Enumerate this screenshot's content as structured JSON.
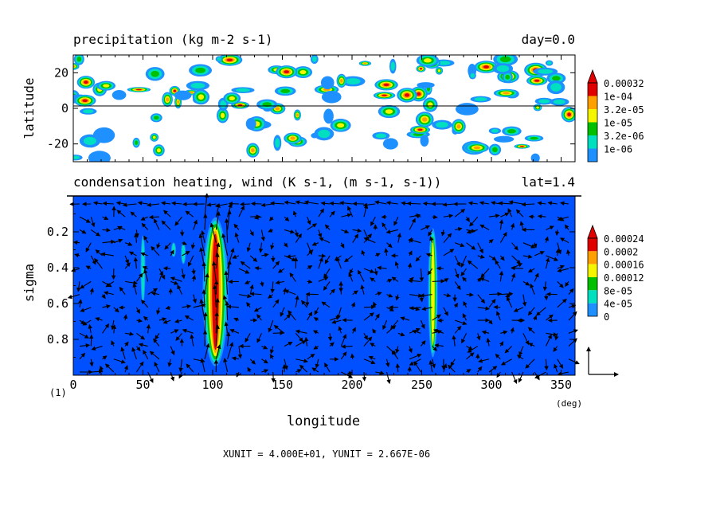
{
  "chart_data": [
    {
      "type": "heatmap",
      "title": "precipitation (kg m-2 s-1)",
      "title_right": "day=0.0",
      "ylabel": "latitude",
      "xlim": [
        0,
        360
      ],
      "ylim": [
        -30,
        30
      ],
      "yticks": [
        "20",
        "0",
        "-20"
      ],
      "ytick_values": [
        20,
        0,
        -20
      ],
      "colorbar": {
        "labels": [
          "0.00032",
          "1e-04",
          "3.2e-05",
          "1e-05",
          "3.2e-06",
          "1e-06"
        ],
        "colors": [
          "#ffffff",
          "#1e90ff",
          "#00e0c0",
          "#00c000",
          "#f5f500",
          "#ffa000",
          "#e00000"
        ]
      },
      "features": [
        {
          "name": "equator-line",
          "y": 0
        }
      ]
    },
    {
      "type": "heatmap",
      "title": "condensation heating, wind (K s-1, (m s-1, s-1))",
      "title_right": "lat=1.4",
      "xlabel": "longitude",
      "xunit": "(deg)",
      "ylabel": "sigma",
      "xlim": [
        0,
        360
      ],
      "ylim": [
        0,
        1
      ],
      "xticks": [
        "0",
        "50",
        "100",
        "150",
        "200",
        "250",
        "300",
        "350"
      ],
      "xtick_values": [
        0,
        50,
        100,
        150,
        200,
        250,
        300,
        350
      ],
      "yticks": [
        "0.2",
        "0.4",
        "0.6",
        "0.8"
      ],
      "ytick_values": [
        0.2,
        0.4,
        0.6,
        0.8
      ],
      "colorbar": {
        "labels": [
          "0.00024",
          "0.0002",
          "0.00016",
          "0.00012",
          "8e-05",
          "4e-05",
          "0"
        ],
        "colors": [
          "#0050ff",
          "#1e90ff",
          "#00e0c0",
          "#00c000",
          "#f5f500",
          "#ffa000",
          "#e00000"
        ]
      },
      "heating_columns": [
        {
          "lon": 102,
          "sigma_top": 0.12,
          "sigma_bottom": 0.95,
          "level": "max"
        },
        {
          "lon": 258,
          "sigma_top": 0.18,
          "sigma_bottom": 0.9,
          "level": "medium"
        },
        {
          "lon": 50,
          "sigma_top": 0.22,
          "sigma_bottom": 0.6,
          "level": "low"
        },
        {
          "lon": 72,
          "sigma_top": 0.26,
          "sigma_bottom": 0.34,
          "level": "low"
        },
        {
          "lon": 79,
          "sigma_top": 0.26,
          "sigma_bottom": 0.38,
          "level": "low"
        }
      ]
    }
  ],
  "footer": {
    "panel_number": "(1)",
    "units_text": "XUNIT = 4.000E+01, YUNIT = 2.667E-06"
  }
}
